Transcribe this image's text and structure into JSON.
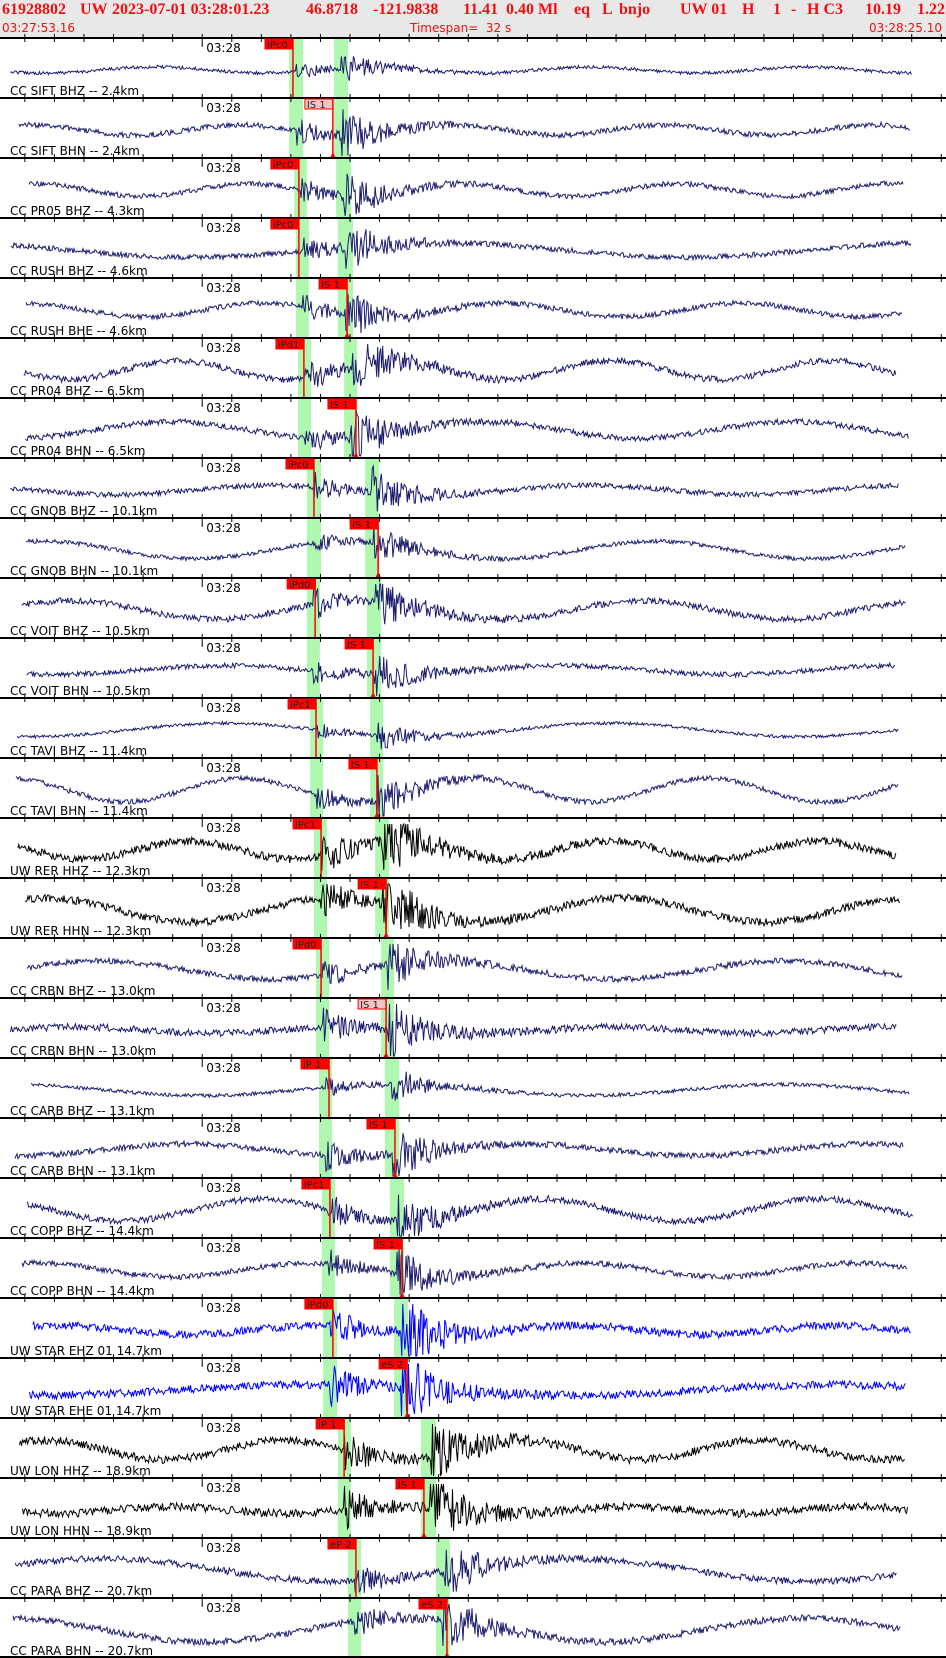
{
  "header": {
    "event_id": "61928802",
    "network": "UW",
    "origin_time": "2023-07-01 03:28:01.23",
    "latitude": "46.8718",
    "longitude": "-121.9838",
    "depth": "11.41",
    "magnitude": "0.40 Ml",
    "event_type": "eq",
    "L": "L",
    "author": "bnjo",
    "source": "UW 01",
    "flag1": "H",
    "flag2": "1",
    "flag3": "-",
    "quality": "H C3",
    "value1": "10.19",
    "value2": "1.22",
    "start_time": "03:27:53.16",
    "timespan": "Timespan=  32 s",
    "end_time": "03:28:25.10"
  },
  "axis": {
    "minute_label": "03:28",
    "start_seconds_before_0328": 6.84,
    "span_s": 32,
    "tick_interval_s": 1
  },
  "colors": {
    "header_text": "#f01010",
    "pick": "#ff0000",
    "pick_weak": "#f4c4c4",
    "window": "#b0f8b0",
    "navy": "#1c1c6e",
    "black": "#000000",
    "blue": "#0000ff"
  },
  "rows": [
    {
      "label": "CC SIFT BHZ -- 2.4km",
      "color": "navy",
      "pick": {
        "label": "iPc0",
        "t": 3.07
      },
      "pwin": [
        2.94,
        3.41
      ],
      "swin": [
        4.46,
        4.93
      ]
    },
    {
      "label": "CC SIFT BHN -- 2.4km",
      "color": "navy",
      "pick": {
        "label": "IS 1",
        "t": 4.42,
        "weak": true
      },
      "pwin": [
        2.94,
        3.41
      ],
      "swin": [
        4.46,
        4.93
      ]
    },
    {
      "label": "CC PR05 BHZ -- 4.3km",
      "color": "navy",
      "pick": {
        "label": "iPc0",
        "t": 3.27
      },
      "pwin": [
        3.11,
        3.54
      ],
      "swin": [
        4.53,
        5.03
      ]
    },
    {
      "label": "CC RUSH BHZ -- 4.6km",
      "color": "navy",
      "pick": {
        "label": "iPc0",
        "t": 3.27
      },
      "pwin": [
        3.17,
        3.61
      ],
      "swin": [
        4.59,
        5.1
      ]
    },
    {
      "label": "CC RUSH BHE -- 4.6km",
      "color": "navy",
      "pick": {
        "label": "IS 1",
        "t": 4.9
      },
      "pwin": [
        3.17,
        3.61
      ],
      "swin": [
        4.59,
        5.1
      ]
    },
    {
      "label": "CC PR04 BHZ -- 6.5km",
      "color": "navy",
      "pick": {
        "label": "iPd1",
        "t": 3.44
      },
      "pwin": [
        3.24,
        3.68
      ],
      "swin": [
        4.8,
        5.24
      ]
    },
    {
      "label": "CC PR04 BHN -- 6.5km",
      "color": "navy",
      "pick": {
        "label": "IS 1",
        "t": 5.2
      },
      "pwin": [
        3.24,
        3.68
      ],
      "swin": [
        4.8,
        5.24
      ]
    },
    {
      "label": "CC GNOB BHZ -- 10.1km",
      "color": "navy",
      "pick": {
        "label": "iPc0",
        "t": 3.78
      },
      "pwin": [
        3.54,
        4.02
      ],
      "swin": [
        5.51,
        5.98
      ]
    },
    {
      "label": "CC GNOB BHN -- 10.1km",
      "color": "navy",
      "pick": {
        "label": "IS 1",
        "t": 5.95
      },
      "pwin": [
        3.54,
        4.02
      ],
      "swin": [
        5.51,
        5.98
      ]
    },
    {
      "label": "CC VOIT BHZ -- 10.5km",
      "color": "navy",
      "pick": {
        "label": "iPd0",
        "t": 3.82
      },
      "pwin": [
        3.54,
        3.98
      ],
      "swin": [
        5.57,
        6.05
      ]
    },
    {
      "label": "CC VOIT BHN -- 10.5km",
      "color": "navy",
      "pick": {
        "label": "IS 1",
        "t": 5.78
      },
      "pwin": [
        3.54,
        3.98
      ],
      "swin": [
        5.57,
        6.05
      ]
    },
    {
      "label": "CC TAVI BHZ -- 11.4km",
      "color": "navy",
      "pick": {
        "label": "iPc1",
        "t": 3.85
      },
      "pwin": [
        3.65,
        4.09
      ],
      "swin": [
        5.68,
        6.12
      ]
    },
    {
      "label": "CC TAVI BHN -- 11.4km",
      "color": "navy",
      "pick": {
        "label": "IS 1",
        "t": 5.91
      },
      "pwin": [
        3.65,
        4.09
      ],
      "swin": [
        5.68,
        6.12
      ]
    },
    {
      "label": "UW RER HHZ -- 12.3km",
      "color": "black",
      "pick": {
        "label": "iPc1",
        "t": 4.02
      },
      "pwin": [
        3.78,
        4.22
      ],
      "swin": [
        5.85,
        6.32
      ]
    },
    {
      "label": "UW RER HHN -- 12.3km",
      "color": "black",
      "pick": {
        "label": "IS 1",
        "t": 6.22
      },
      "pwin": [
        3.78,
        4.22
      ],
      "swin": [
        5.85,
        6.32
      ]
    },
    {
      "label": "CC CRBN BHZ -- 13.0km",
      "color": "navy",
      "pick": {
        "label": "iPd0",
        "t": 4.02
      },
      "pwin": [
        3.85,
        4.29
      ],
      "swin": [
        6.05,
        6.49
      ]
    },
    {
      "label": "CC CRBN BHN -- 13.0km",
      "color": "navy",
      "pick": {
        "label": "IS 1",
        "t": 6.22,
        "weak": true
      },
      "pwin": [
        3.85,
        4.29
      ],
      "swin": [
        6.05,
        6.49
      ]
    },
    {
      "label": "CC CARB BHZ -- 13.1km",
      "color": "navy",
      "pick": {
        "label": "iP 1",
        "t": 4.29
      },
      "pwin": [
        3.95,
        4.39
      ],
      "swin": [
        6.18,
        6.66
      ]
    },
    {
      "label": "CC CARB BHN -- 13.1km",
      "color": "navy",
      "pick": {
        "label": "IS 1",
        "t": 6.52
      },
      "pwin": [
        3.95,
        4.39
      ],
      "swin": [
        6.18,
        6.66
      ]
    },
    {
      "label": "CC COPP BHZ -- 14.4km",
      "color": "navy",
      "pick": {
        "label": "iPc1",
        "t": 4.32
      },
      "pwin": [
        4.05,
        4.49
      ],
      "swin": [
        6.35,
        6.83
      ]
    },
    {
      "label": "CC COPP BHN -- 14.4km",
      "color": "navy",
      "pick": {
        "label": "IS 1",
        "t": 6.76
      },
      "pwin": [
        4.05,
        4.49
      ],
      "swin": [
        6.35,
        6.83
      ]
    },
    {
      "label": "UW STAR EHZ 01 14.7km",
      "color": "blue",
      "pick": {
        "label": "iPd0",
        "t": 4.42
      },
      "pwin": [
        4.09,
        4.56
      ],
      "swin": [
        6.49,
        6.96
      ]
    },
    {
      "label": "UW STAR EHE 01 14.7km",
      "color": "blue",
      "pick": {
        "label": "eS 2",
        "t": 6.93
      },
      "pwin": [
        4.09,
        4.56
      ],
      "swin": [
        6.49,
        6.96
      ]
    },
    {
      "label": "UW LON HHZ -- 18.9km",
      "color": "black",
      "pick": {
        "label": "iP 1",
        "t": 4.8
      },
      "pwin": [
        4.59,
        5.03
      ],
      "swin": [
        7.4,
        7.91
      ]
    },
    {
      "label": "UW LON HHN -- 18.9km",
      "color": "black",
      "pick": {
        "label": "IS 1",
        "t": 7.5
      },
      "pwin": [
        4.59,
        5.03
      ],
      "swin": [
        7.4,
        7.91
      ]
    },
    {
      "label": "CC PARA BHZ -- 20.7km",
      "color": "navy",
      "pick": {
        "label": "eP 2",
        "t": 5.2
      },
      "pwin": [
        4.93,
        5.37
      ],
      "swin": [
        7.91,
        8.38
      ]
    },
    {
      "label": "CC PARA BHN -- 20.7km",
      "color": "navy",
      "pick": {
        "label": "eS 2",
        "t": 8.28
      },
      "pwin": [
        4.93,
        5.37
      ],
      "swin": [
        7.91,
        8.38
      ]
    }
  ]
}
